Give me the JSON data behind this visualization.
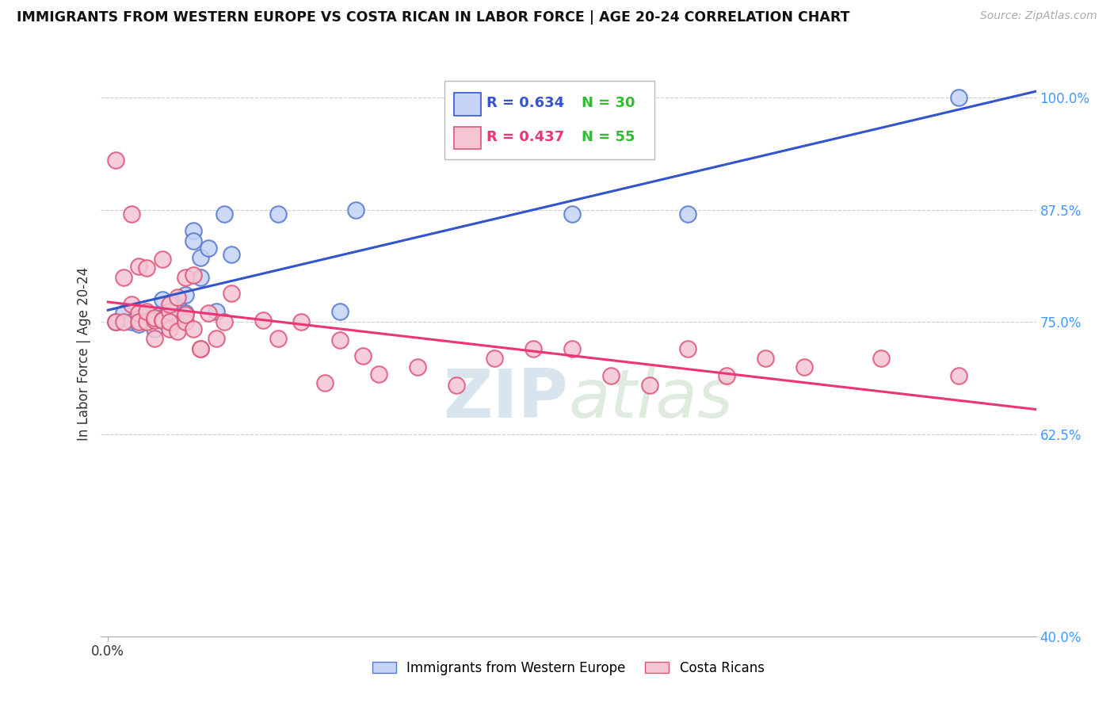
{
  "title": "IMMIGRANTS FROM WESTERN EUROPE VS COSTA RICAN IN LABOR FORCE | AGE 20-24 CORRELATION CHART",
  "source": "Source: ZipAtlas.com",
  "ylabel": "In Labor Force | Age 20-24",
  "blue_R": 0.634,
  "blue_N": 30,
  "pink_R": 0.437,
  "pink_N": 55,
  "blue_label": "Immigrants from Western Europe",
  "pink_label": "Costa Ricans",
  "blue_face_color": "#c5d4f5",
  "blue_edge_color": "#5577cc",
  "pink_face_color": "#f5c5d4",
  "pink_edge_color": "#dd5577",
  "blue_line_color": "#3355cc",
  "pink_line_color": "#ee3377",
  "ytick_color": "#4499ff",
  "watermark_color": "#d8e8f0",
  "blue_scatter_x": [
    0.001,
    0.002,
    0.003,
    0.004,
    0.005,
    0.005,
    0.006,
    0.006,
    0.007,
    0.007,
    0.007,
    0.008,
    0.008,
    0.009,
    0.01,
    0.01,
    0.011,
    0.011,
    0.012,
    0.012,
    0.013,
    0.014,
    0.015,
    0.016,
    0.022,
    0.03,
    0.032,
    0.06,
    0.075,
    0.11
  ],
  "blue_scatter_y": [
    0.75,
    0.76,
    0.75,
    0.748,
    0.758,
    0.752,
    0.757,
    0.742,
    0.76,
    0.755,
    0.775,
    0.762,
    0.75,
    0.77,
    0.78,
    0.76,
    0.852,
    0.84,
    0.8,
    0.822,
    0.832,
    0.762,
    0.87,
    0.825,
    0.87,
    0.762,
    0.875,
    0.87,
    0.87,
    1.0
  ],
  "pink_scatter_x": [
    0.001,
    0.001,
    0.002,
    0.002,
    0.003,
    0.003,
    0.004,
    0.004,
    0.004,
    0.005,
    0.005,
    0.005,
    0.006,
    0.006,
    0.006,
    0.007,
    0.007,
    0.007,
    0.008,
    0.008,
    0.008,
    0.008,
    0.009,
    0.009,
    0.01,
    0.01,
    0.01,
    0.011,
    0.011,
    0.012,
    0.012,
    0.013,
    0.014,
    0.015,
    0.016,
    0.02,
    0.022,
    0.025,
    0.028,
    0.03,
    0.033,
    0.035,
    0.04,
    0.045,
    0.05,
    0.055,
    0.06,
    0.065,
    0.07,
    0.075,
    0.08,
    0.085,
    0.09,
    0.1,
    0.11
  ],
  "pink_scatter_y": [
    0.75,
    0.93,
    0.75,
    0.8,
    0.87,
    0.77,
    0.76,
    0.812,
    0.75,
    0.75,
    0.762,
    0.81,
    0.752,
    0.755,
    0.732,
    0.752,
    0.82,
    0.752,
    0.742,
    0.762,
    0.75,
    0.77,
    0.74,
    0.778,
    0.75,
    0.8,
    0.758,
    0.802,
    0.742,
    0.72,
    0.72,
    0.76,
    0.732,
    0.75,
    0.782,
    0.752,
    0.732,
    0.75,
    0.682,
    0.73,
    0.712,
    0.692,
    0.7,
    0.68,
    0.71,
    0.72,
    0.72,
    0.69,
    0.68,
    0.72,
    0.69,
    0.71,
    0.7,
    0.71,
    0.69
  ],
  "xlim_max": 0.12,
  "ylim_min": 0.4,
  "ylim_max": 1.03
}
